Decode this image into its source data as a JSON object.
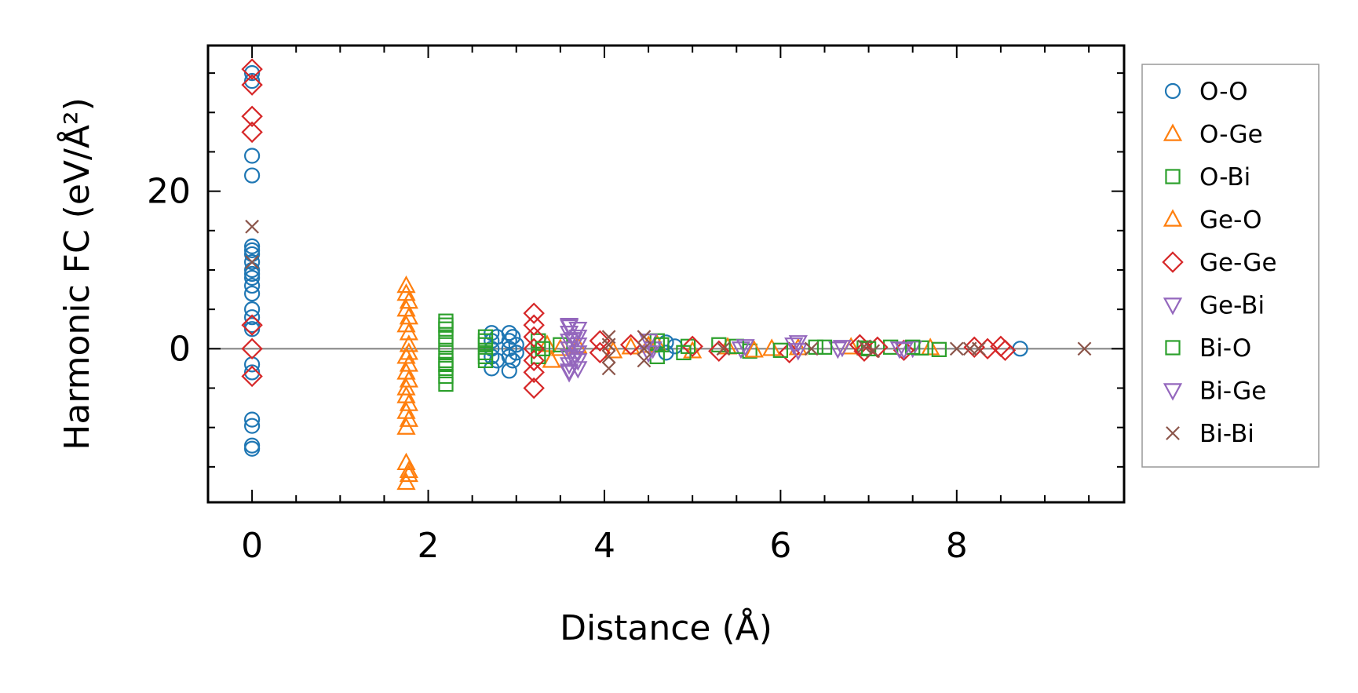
{
  "chart_data": {
    "type": "scatter",
    "xlabel": "Distance (Å)",
    "ylabel": "Harmonic FC (eV/Å²)",
    "xlim": [
      -0.5,
      9.9
    ],
    "ylim": [
      -19.5,
      38.5
    ],
    "xticks": [
      0,
      2,
      4,
      6,
      8
    ],
    "yticks": [
      0,
      20
    ],
    "zero_line": true,
    "legend_position": "outside-right",
    "series": [
      {
        "name": "O-O",
        "marker": "circle",
        "color": "#1f77b4",
        "points": [
          [
            0,
            35
          ],
          [
            0,
            34
          ],
          [
            0,
            24.5
          ],
          [
            0,
            22
          ],
          [
            0,
            13
          ],
          [
            0,
            12.5
          ],
          [
            0,
            12
          ],
          [
            0,
            11
          ],
          [
            0,
            10
          ],
          [
            0,
            9.5
          ],
          [
            0,
            9
          ],
          [
            0,
            8
          ],
          [
            0,
            7
          ],
          [
            0,
            5
          ],
          [
            0,
            4
          ],
          [
            0,
            3
          ],
          [
            0,
            2.5
          ],
          [
            0,
            -2
          ],
          [
            0,
            -3
          ],
          [
            0,
            -9
          ],
          [
            0,
            -9.8
          ],
          [
            0,
            -12.3
          ],
          [
            0,
            -12.7
          ],
          [
            2.72,
            2
          ],
          [
            2.72,
            1
          ],
          [
            2.72,
            0
          ],
          [
            2.72,
            -1
          ],
          [
            2.72,
            -2.5
          ],
          [
            2.78,
            1.5
          ],
          [
            2.78,
            -1.5
          ],
          [
            2.92,
            2
          ],
          [
            2.92,
            1
          ],
          [
            2.92,
            0
          ],
          [
            2.92,
            -1
          ],
          [
            2.92,
            -2.8
          ],
          [
            2.96,
            1.5
          ],
          [
            2.96,
            -1.5
          ],
          [
            3.0,
            0.5
          ],
          [
            3.0,
            -0.5
          ],
          [
            4.7,
            0.8
          ],
          [
            4.7,
            -0.5
          ],
          [
            4.8,
            0.3
          ],
          [
            8.72,
            0
          ]
        ]
      },
      {
        "name": "O-Ge",
        "marker": "triangle-up",
        "color": "#ff7f0e",
        "points": [
          [
            1.75,
            8
          ],
          [
            1.75,
            7
          ],
          [
            1.78,
            4
          ],
          [
            1.75,
            3
          ],
          [
            1.78,
            2
          ],
          [
            1.75,
            -1
          ],
          [
            1.78,
            -2
          ],
          [
            1.75,
            -3
          ],
          [
            1.78,
            -4
          ],
          [
            1.75,
            -5
          ],
          [
            1.75,
            -6
          ],
          [
            1.78,
            -7
          ],
          [
            1.75,
            -8
          ],
          [
            1.78,
            -9
          ],
          [
            1.75,
            -14.5
          ],
          [
            1.78,
            -15.5
          ],
          [
            1.75,
            -17
          ],
          [
            3.35,
            0.5
          ],
          [
            3.4,
            -1.5
          ],
          [
            3.5,
            0
          ],
          [
            4.3,
            0.2
          ],
          [
            4.6,
            0.5
          ],
          [
            5.0,
            -0.3
          ],
          [
            5.4,
            0.2
          ],
          [
            5.9,
            0
          ],
          [
            6.8,
            0.2
          ],
          [
            7.7,
            0.1
          ]
        ]
      },
      {
        "name": "O-Bi",
        "marker": "square",
        "color": "#2ca02c",
        "points": [
          [
            2.2,
            3.5
          ],
          [
            2.2,
            2.5
          ],
          [
            2.2,
            1.5
          ],
          [
            2.2,
            0.5
          ],
          [
            2.2,
            -0.5
          ],
          [
            2.2,
            -1.5
          ],
          [
            2.2,
            -2.5
          ],
          [
            2.2,
            -3.5
          ],
          [
            2.2,
            -4.5
          ],
          [
            2.65,
            1.5
          ],
          [
            2.65,
            0.5
          ],
          [
            2.65,
            -0.5
          ],
          [
            2.65,
            -1.5
          ],
          [
            3.25,
            1
          ],
          [
            3.25,
            -1
          ],
          [
            3.5,
            0.5
          ],
          [
            4.6,
            1
          ],
          [
            4.6,
            -1
          ],
          [
            4.95,
            0.3
          ],
          [
            5.3,
            0.5
          ],
          [
            5.65,
            -0.3
          ],
          [
            6.4,
            0.2
          ],
          [
            6.95,
            0.1
          ],
          [
            7.25,
            0.2
          ],
          [
            7.6,
            0.1
          ]
        ]
      },
      {
        "name": "Ge-O",
        "marker": "triangle-up",
        "color": "#ff7f0e",
        "points": [
          [
            1.78,
            6
          ],
          [
            1.75,
            5
          ],
          [
            1.78,
            0.5
          ],
          [
            1.78,
            -0.5
          ],
          [
            1.75,
            -10
          ],
          [
            1.78,
            -16
          ],
          [
            3.7,
            0.3
          ],
          [
            4.1,
            -0.3
          ],
          [
            4.5,
            0.4
          ],
          [
            5.7,
            -0.2
          ],
          [
            6.2,
            0.1
          ]
        ]
      },
      {
        "name": "Ge-Ge",
        "marker": "diamond",
        "color": "#d62728",
        "points": [
          [
            0,
            35.5
          ],
          [
            0,
            33.5
          ],
          [
            0,
            29.5
          ],
          [
            0,
            27.5
          ],
          [
            0,
            3
          ],
          [
            0,
            0
          ],
          [
            0,
            -3.5
          ],
          [
            3.2,
            4.5
          ],
          [
            3.2,
            3
          ],
          [
            3.2,
            1.5
          ],
          [
            3.2,
            0
          ],
          [
            3.2,
            -1.5
          ],
          [
            3.2,
            -3
          ],
          [
            3.2,
            -5
          ],
          [
            3.95,
            1
          ],
          [
            3.95,
            -0.5
          ],
          [
            4.3,
            0.5
          ],
          [
            5.0,
            0.3
          ],
          [
            5.3,
            -0.3
          ],
          [
            6.1,
            -0.5
          ],
          [
            6.9,
            0.5
          ],
          [
            6.95,
            -0.3
          ],
          [
            7.1,
            0.2
          ],
          [
            7.4,
            -0.2
          ],
          [
            8.2,
            0.2
          ],
          [
            8.35,
            0
          ],
          [
            8.5,
            0.3
          ],
          [
            8.55,
            -0.2
          ]
        ]
      },
      {
        "name": "Ge-Bi",
        "marker": "triangle-down",
        "color": "#9467bd",
        "points": [
          [
            3.6,
            3
          ],
          [
            3.6,
            2
          ],
          [
            3.6,
            1
          ],
          [
            3.6,
            0
          ],
          [
            3.6,
            -1
          ],
          [
            3.6,
            -2
          ],
          [
            3.6,
            -3
          ],
          [
            3.7,
            2.5
          ],
          [
            3.7,
            1.5
          ],
          [
            3.7,
            0.5
          ],
          [
            3.7,
            -0.5
          ],
          [
            3.7,
            -1.5
          ],
          [
            3.7,
            -2.5
          ],
          [
            4.5,
            1
          ],
          [
            4.55,
            0
          ],
          [
            5.55,
            0
          ],
          [
            6.15,
            0.5
          ],
          [
            6.2,
            -0.2
          ],
          [
            6.65,
            0
          ],
          [
            7.35,
            0
          ],
          [
            7.5,
            0.1
          ]
        ]
      },
      {
        "name": "Bi-O",
        "marker": "square",
        "color": "#2ca02c",
        "points": [
          [
            2.2,
            3
          ],
          [
            2.2,
            -2
          ],
          [
            2.65,
            1
          ],
          [
            2.65,
            -1
          ],
          [
            3.3,
            0
          ],
          [
            4.65,
            0.5
          ],
          [
            4.9,
            -0.5
          ],
          [
            5.5,
            0.3
          ],
          [
            6.0,
            -0.2
          ],
          [
            6.5,
            0.2
          ],
          [
            7.0,
            0
          ],
          [
            7.5,
            0.2
          ],
          [
            7.8,
            -0.1
          ]
        ]
      },
      {
        "name": "Bi-Ge",
        "marker": "triangle-down",
        "color": "#9467bd",
        "points": [
          [
            3.6,
            2.8
          ],
          [
            3.65,
            1.2
          ],
          [
            3.65,
            -1.2
          ],
          [
            3.6,
            -2.8
          ],
          [
            4.5,
            -0.5
          ],
          [
            5.6,
            0.3
          ],
          [
            6.2,
            0.8
          ],
          [
            6.7,
            0.2
          ],
          [
            7.4,
            -0.1
          ]
        ]
      },
      {
        "name": "Bi-Bi",
        "marker": "x",
        "color": "#8c564b",
        "points": [
          [
            0,
            15.5
          ],
          [
            0,
            11
          ],
          [
            4.05,
            1.5
          ],
          [
            4.05,
            0.5
          ],
          [
            4.05,
            -1
          ],
          [
            4.05,
            -2.5
          ],
          [
            4.45,
            1.5
          ],
          [
            4.45,
            0
          ],
          [
            4.45,
            -1.5
          ],
          [
            5.35,
            0
          ],
          [
            6.35,
            0
          ],
          [
            6.95,
            0.3
          ],
          [
            7.05,
            -0.3
          ],
          [
            8.0,
            0
          ],
          [
            8.15,
            0
          ],
          [
            8.25,
            0
          ],
          [
            9.45,
            0
          ]
        ]
      }
    ]
  }
}
